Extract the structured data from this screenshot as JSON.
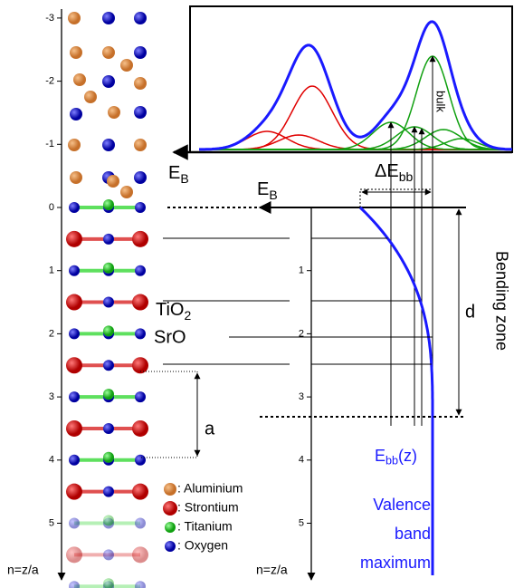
{
  "left_axis": {
    "ticks": [
      -3,
      -2,
      -1,
      0,
      1,
      2,
      3,
      4,
      5
    ],
    "label": "n=z/a"
  },
  "right_axis": {
    "ticks": [
      1,
      2,
      3,
      4,
      5
    ],
    "label": "n=z/a"
  },
  "inset": {
    "energy_label": {
      "main": "E",
      "sub": "B"
    },
    "bulk": "bulk"
  },
  "energy_label": {
    "main": "E",
    "sub": "B"
  },
  "delta_label": {
    "main": "ΔE",
    "sub": "bb"
  },
  "bending": {
    "d": "d",
    "zone": "Bending zone"
  },
  "layers": {
    "tio2": {
      "main": "TiO",
      "sub": "2"
    },
    "sro": "SrO",
    "a": "a"
  },
  "legend": [
    ": Aluminium",
    ": Strontium",
    ": Titanium",
    ": Oxygen"
  ],
  "curve_label": {
    "main": "E",
    "sub": "bb",
    "rest": "(z)"
  },
  "vbm": [
    "Valence",
    "band",
    "maximum"
  ]
}
